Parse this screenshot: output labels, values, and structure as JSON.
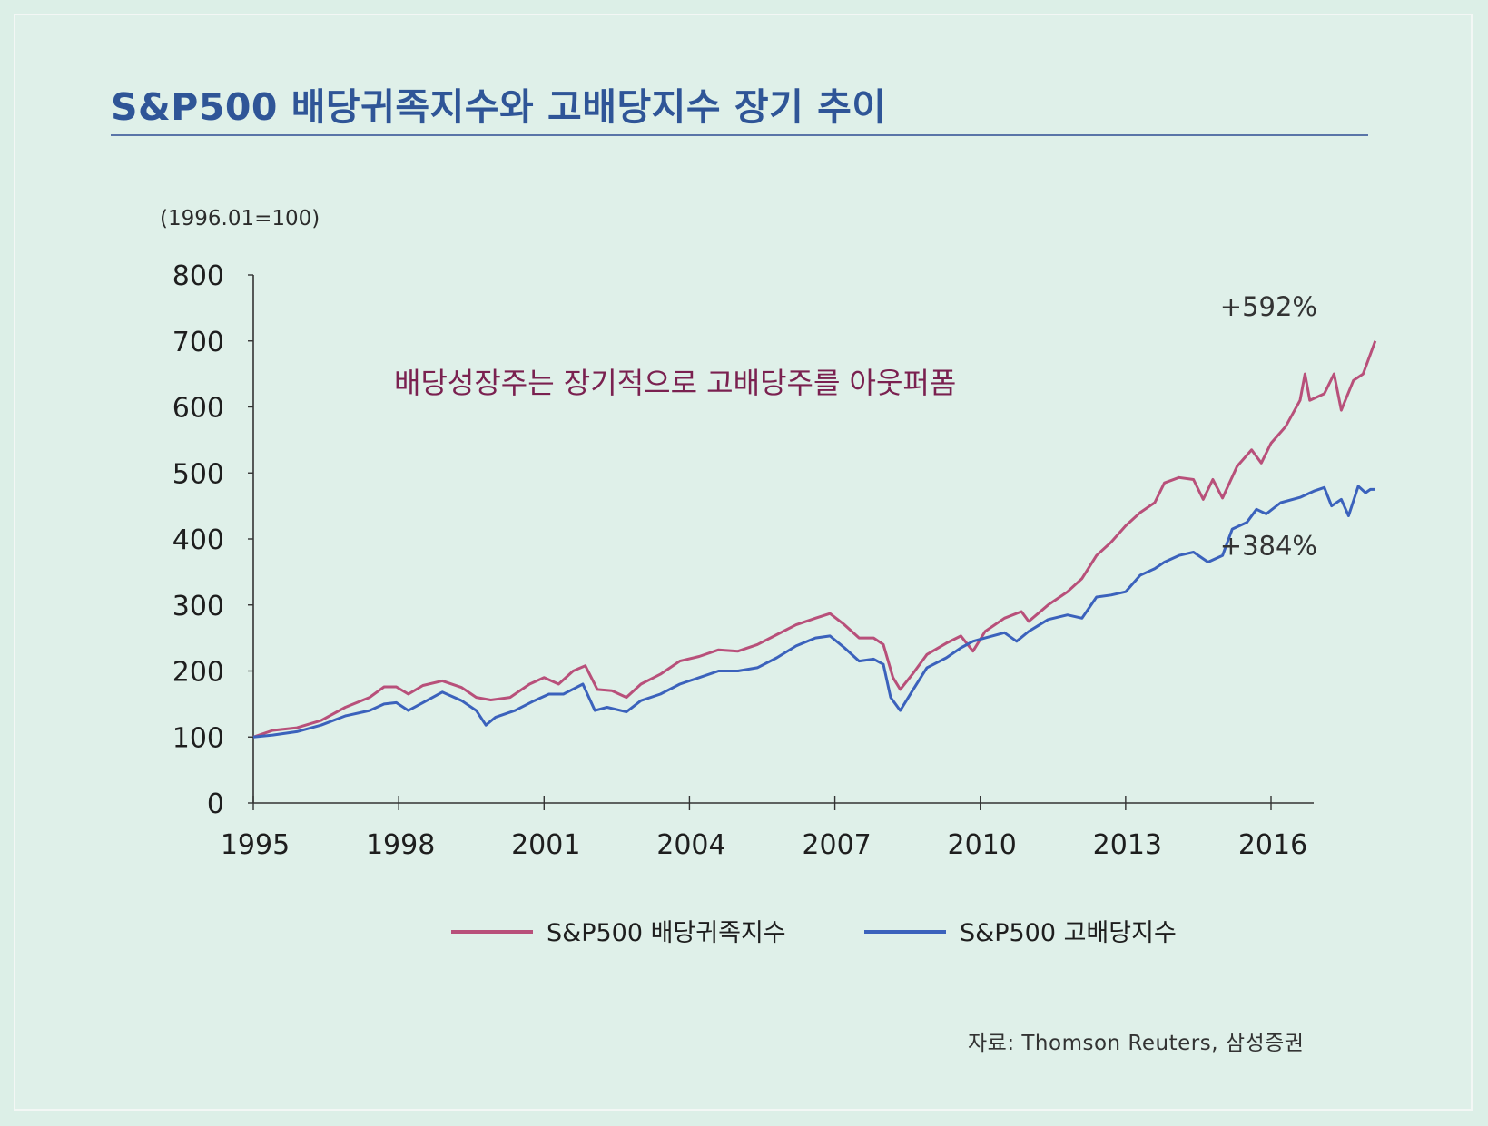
{
  "title": "S&P500 배당귀족지수와 고배당지수 장기 추이",
  "source": "자료: Thomson Reuters, 삼성증권",
  "chart_data": {
    "type": "line",
    "unit_label": "(1996.01=100)",
    "ylim": [
      0,
      800
    ],
    "yticks": [
      0,
      100,
      200,
      300,
      400,
      500,
      600,
      700,
      800
    ],
    "xlim": [
      1995.0,
      2017.3
    ],
    "xticks": [
      1995,
      1998,
      2001,
      2004,
      2007,
      2010,
      2013,
      2016
    ],
    "annotation": "배당성장주는 장기적으로 고배당주를 아웃퍼폼",
    "legend_position": "bottom",
    "grid": false,
    "series": [
      {
        "name": "S&P500 배당귀족지수",
        "color": "#b8507a",
        "end_label": "+592%",
        "points": [
          [
            1995.0,
            100
          ],
          [
            1995.4,
            110
          ],
          [
            1995.9,
            114
          ],
          [
            1996.4,
            125
          ],
          [
            1996.9,
            145
          ],
          [
            1997.4,
            160
          ],
          [
            1997.7,
            176
          ],
          [
            1997.95,
            176
          ],
          [
            1998.2,
            165
          ],
          [
            1998.5,
            178
          ],
          [
            1998.9,
            185
          ],
          [
            1999.3,
            175
          ],
          [
            1999.6,
            160
          ],
          [
            1999.9,
            156
          ],
          [
            2000.3,
            160
          ],
          [
            2000.7,
            180
          ],
          [
            2001.0,
            190
          ],
          [
            2001.3,
            180
          ],
          [
            2001.6,
            200
          ],
          [
            2001.85,
            208
          ],
          [
            2002.1,
            172
          ],
          [
            2002.4,
            170
          ],
          [
            2002.7,
            160
          ],
          [
            2003.0,
            180
          ],
          [
            2003.4,
            195
          ],
          [
            2003.8,
            215
          ],
          [
            2004.2,
            222
          ],
          [
            2004.6,
            232
          ],
          [
            2005.0,
            230
          ],
          [
            2005.4,
            240
          ],
          [
            2005.8,
            255
          ],
          [
            2006.2,
            270
          ],
          [
            2006.6,
            280
          ],
          [
            2006.9,
            287
          ],
          [
            2007.2,
            270
          ],
          [
            2007.5,
            250
          ],
          [
            2007.8,
            250
          ],
          [
            2008.0,
            240
          ],
          [
            2008.2,
            190
          ],
          [
            2008.35,
            172
          ],
          [
            2008.6,
            195
          ],
          [
            2008.9,
            225
          ],
          [
            2009.3,
            242
          ],
          [
            2009.6,
            253
          ],
          [
            2009.85,
            230
          ],
          [
            2010.1,
            260
          ],
          [
            2010.5,
            280
          ],
          [
            2010.85,
            290
          ],
          [
            2011.0,
            275
          ],
          [
            2011.4,
            300
          ],
          [
            2011.8,
            320
          ],
          [
            2012.1,
            340
          ],
          [
            2012.4,
            375
          ],
          [
            2012.7,
            395
          ],
          [
            2013.0,
            420
          ],
          [
            2013.3,
            440
          ],
          [
            2013.6,
            455
          ],
          [
            2013.8,
            485
          ],
          [
            2014.1,
            493
          ],
          [
            2014.4,
            490
          ],
          [
            2014.6,
            460
          ],
          [
            2014.8,
            490
          ],
          [
            2015.0,
            462
          ],
          [
            2015.3,
            510
          ],
          [
            2015.6,
            535
          ],
          [
            2015.8,
            515
          ],
          [
            2016.0,
            545
          ],
          [
            2016.3,
            570
          ],
          [
            2016.6,
            610
          ],
          [
            2016.7,
            650
          ],
          [
            2016.8,
            610
          ],
          [
            2017.1,
            620
          ],
          [
            2017.3,
            650
          ],
          [
            2017.45,
            595
          ],
          [
            2017.7,
            640
          ],
          [
            2017.9,
            650
          ],
          [
            2018.15,
            700
          ]
        ]
      },
      {
        "name": "S&P500 고배당지수",
        "color": "#3b62bc",
        "end_label": "+384%",
        "points": [
          [
            1995.0,
            100
          ],
          [
            1995.4,
            103
          ],
          [
            1995.9,
            108
          ],
          [
            1996.4,
            118
          ],
          [
            1996.9,
            132
          ],
          [
            1997.4,
            140
          ],
          [
            1997.7,
            150
          ],
          [
            1997.95,
            152
          ],
          [
            1998.2,
            140
          ],
          [
            1998.5,
            152
          ],
          [
            1998.9,
            168
          ],
          [
            1999.3,
            155
          ],
          [
            1999.6,
            140
          ],
          [
            1999.8,
            118
          ],
          [
            2000.0,
            130
          ],
          [
            2000.4,
            140
          ],
          [
            2000.8,
            155
          ],
          [
            2001.1,
            165
          ],
          [
            2001.4,
            165
          ],
          [
            2001.8,
            180
          ],
          [
            2002.05,
            140
          ],
          [
            2002.3,
            145
          ],
          [
            2002.7,
            138
          ],
          [
            2003.0,
            155
          ],
          [
            2003.4,
            165
          ],
          [
            2003.8,
            180
          ],
          [
            2004.2,
            190
          ],
          [
            2004.6,
            200
          ],
          [
            2005.0,
            200
          ],
          [
            2005.4,
            205
          ],
          [
            2005.8,
            220
          ],
          [
            2006.2,
            238
          ],
          [
            2006.6,
            250
          ],
          [
            2006.9,
            253
          ],
          [
            2007.2,
            235
          ],
          [
            2007.5,
            215
          ],
          [
            2007.8,
            218
          ],
          [
            2008.0,
            210
          ],
          [
            2008.15,
            160
          ],
          [
            2008.35,
            140
          ],
          [
            2008.6,
            170
          ],
          [
            2008.9,
            205
          ],
          [
            2009.3,
            220
          ],
          [
            2009.6,
            235
          ],
          [
            2009.85,
            245
          ],
          [
            2010.1,
            250
          ],
          [
            2010.5,
            258
          ],
          [
            2010.75,
            245
          ],
          [
            2011.0,
            260
          ],
          [
            2011.4,
            278
          ],
          [
            2011.8,
            285
          ],
          [
            2012.1,
            280
          ],
          [
            2012.4,
            312
          ],
          [
            2012.7,
            315
          ],
          [
            2013.0,
            320
          ],
          [
            2013.3,
            345
          ],
          [
            2013.6,
            355
          ],
          [
            2013.8,
            365
          ],
          [
            2014.1,
            375
          ],
          [
            2014.4,
            380
          ],
          [
            2014.7,
            365
          ],
          [
            2015.0,
            375
          ],
          [
            2015.2,
            415
          ],
          [
            2015.5,
            425
          ],
          [
            2015.7,
            445
          ],
          [
            2015.9,
            438
          ],
          [
            2016.2,
            455
          ],
          [
            2016.6,
            463
          ],
          [
            2016.9,
            473
          ],
          [
            2017.1,
            478
          ],
          [
            2017.25,
            450
          ],
          [
            2017.45,
            460
          ],
          [
            2017.6,
            435
          ],
          [
            2017.8,
            480
          ],
          [
            2017.95,
            470
          ],
          [
            2018.05,
            475
          ],
          [
            2018.15,
            475
          ]
        ]
      }
    ]
  }
}
